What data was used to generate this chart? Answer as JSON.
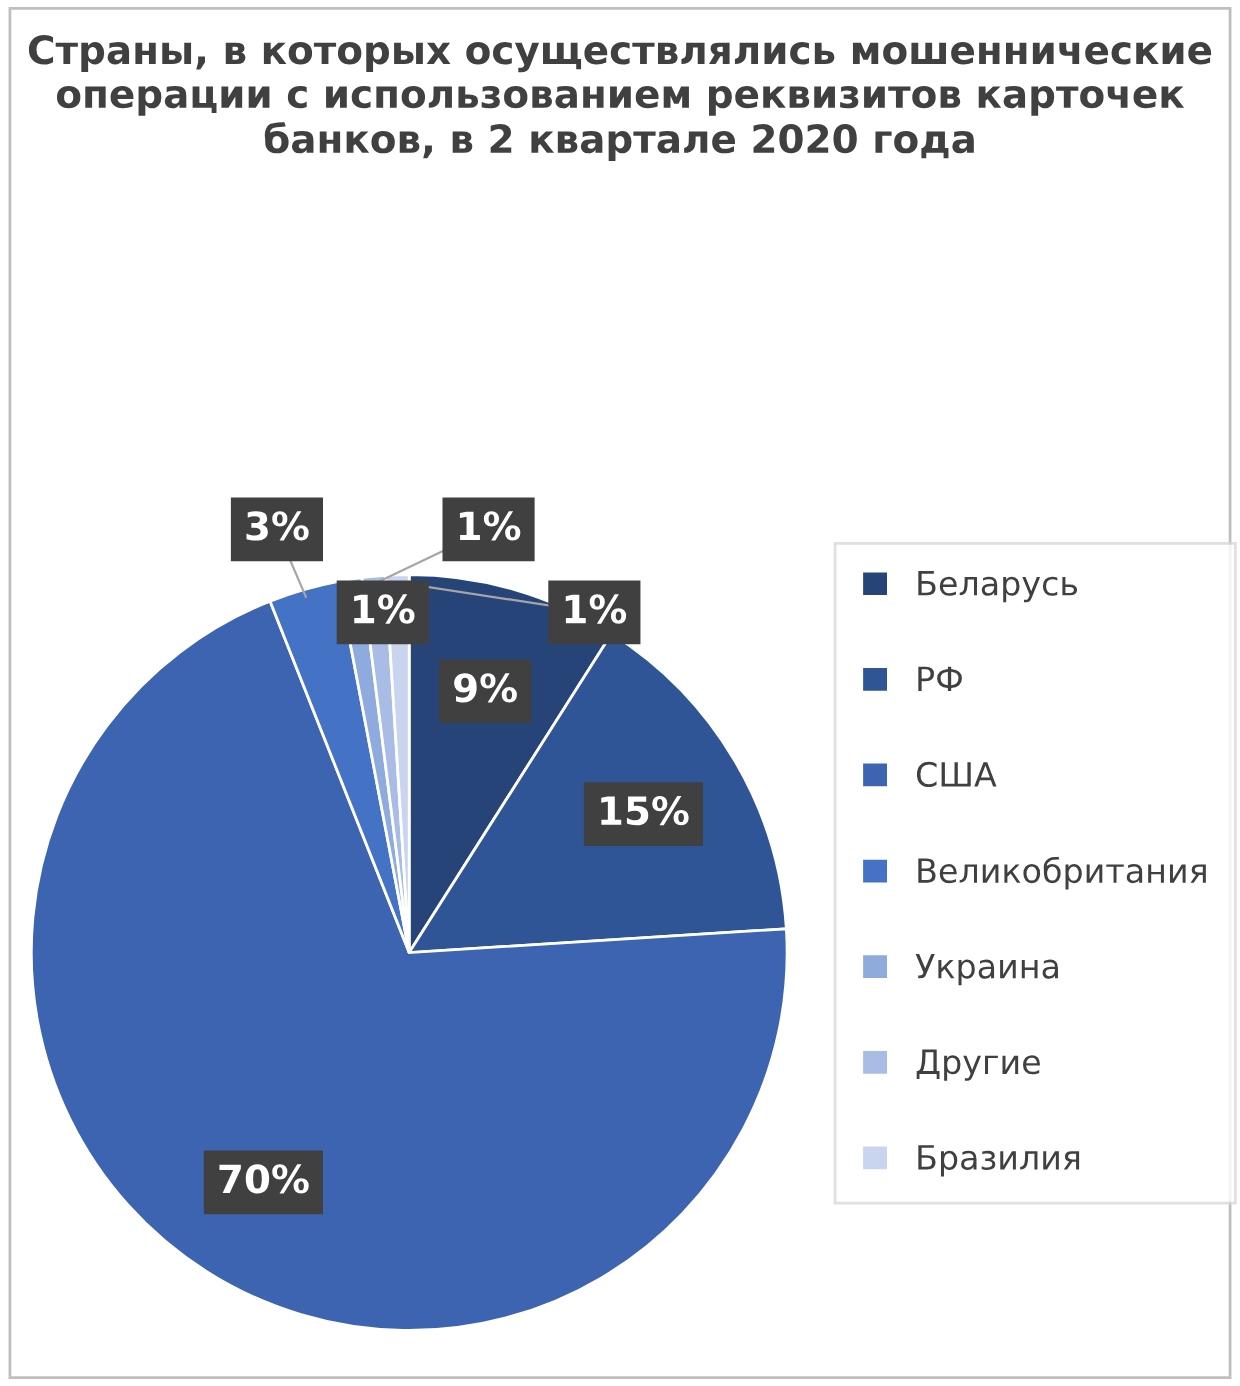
{
  "chart_data": {
    "type": "pie",
    "title": "Страны, в которых осуществлялись мошеннические операции с использованием реквизитов карточек банков, в 2 квартале 2020 года",
    "categories": [
      "Беларусь",
      "РФ",
      "США",
      "Великобритания",
      "Украина",
      "Другие",
      "Бразилия"
    ],
    "values": [
      9,
      15,
      70,
      3,
      1,
      1,
      1
    ],
    "colors": [
      "#264478",
      "#2f5597",
      "#3d64b0",
      "#4472c4",
      "#8faadc",
      "#a9bce6",
      "#c9d5ef"
    ],
    "value_labels": [
      "9%",
      "15%",
      "70%",
      "3%",
      "1%",
      "1%",
      "1%"
    ],
    "legend": "right"
  }
}
